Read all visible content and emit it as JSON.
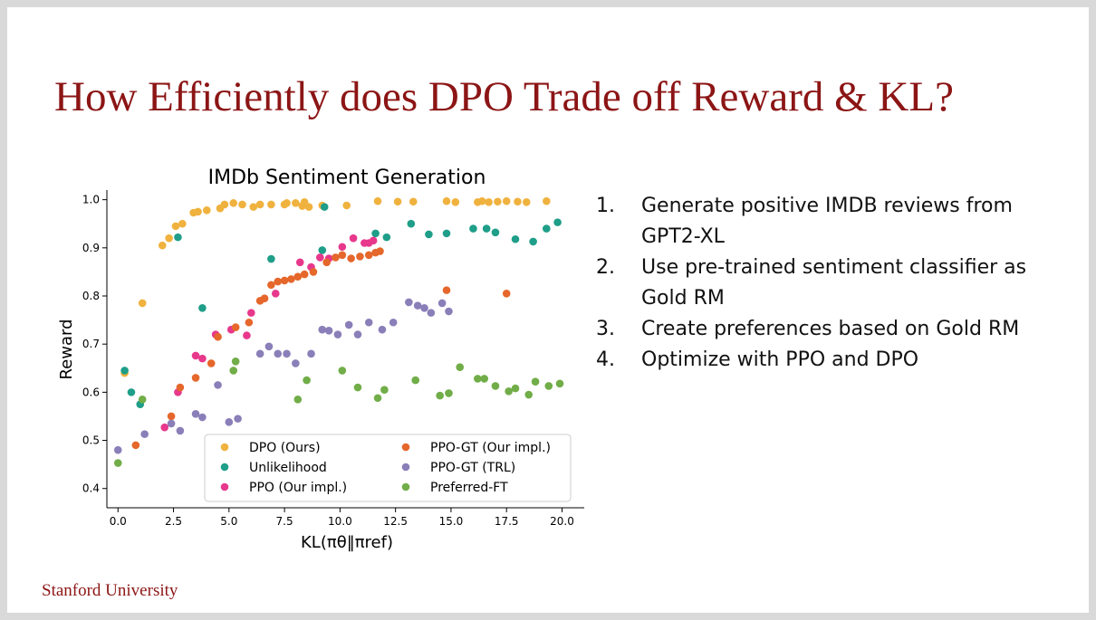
{
  "slide": {
    "title": "How Efficiently does DPO Trade off Reward & KL?",
    "footer": "Stanford University",
    "bullets": [
      {
        "num": "1.",
        "text": "Generate positive IMDB reviews from GPT2-XL"
      },
      {
        "num": "2.",
        "text": "Use pre-trained sentiment classifier as Gold RM"
      },
      {
        "num": "3.",
        "text": "Create preferences based on Gold RM"
      },
      {
        "num": "4.",
        "text": "Optimize with PPO and DPO"
      }
    ]
  },
  "chart_data": {
    "type": "scatter",
    "title": "IMDb Sentiment Generation",
    "xlabel": "KL(πθ‖πref)",
    "ylabel": "Reward",
    "xlim": [
      -0.5,
      21
    ],
    "ylim": [
      0.36,
      1.02
    ],
    "xticks": [
      0.0,
      2.5,
      5.0,
      7.5,
      10.0,
      12.5,
      15.0,
      17.5,
      20.0
    ],
    "xtick_labels": [
      "0.0",
      "2.5",
      "5.0",
      "7.5",
      "10.0",
      "12.5",
      "15.0",
      "17.5",
      "20.0"
    ],
    "yticks": [
      0.4,
      0.5,
      0.6,
      0.7,
      0.8,
      0.9,
      1.0
    ],
    "ytick_labels": [
      "0.4",
      "0.5",
      "0.6",
      "0.7",
      "0.8",
      "0.9",
      "1.0"
    ],
    "grid": false,
    "legend": "bottom-center, two columns",
    "series": [
      {
        "name": "DPO (Ours)",
        "color": "#f0b23e",
        "x": [
          0.3,
          1.1,
          2.0,
          2.3,
          2.6,
          2.9,
          3.4,
          3.6,
          4.0,
          4.6,
          4.8,
          5.2,
          5.6,
          6.1,
          6.4,
          6.9,
          7.5,
          7.6,
          8.0,
          8.3,
          8.4,
          8.6,
          9.2,
          10.3,
          11.7,
          12.6,
          13.3,
          14.8,
          15.2,
          16.2,
          16.4,
          16.7,
          17.1,
          17.5,
          18.0,
          18.4,
          19.3
        ],
        "y": [
          0.64,
          0.785,
          0.905,
          0.92,
          0.945,
          0.95,
          0.973,
          0.975,
          0.978,
          0.982,
          0.99,
          0.993,
          0.99,
          0.985,
          0.99,
          0.99,
          0.99,
          0.993,
          0.993,
          0.987,
          0.995,
          0.985,
          0.988,
          0.988,
          0.997,
          0.996,
          0.996,
          0.997,
          0.995,
          0.995,
          0.997,
          0.995,
          0.996,
          0.997,
          0.996,
          0.995,
          0.997
        ]
      },
      {
        "name": "Unlikelihood",
        "color": "#1f9e89",
        "x": [
          0.3,
          0.6,
          1.0,
          2.7,
          3.8,
          6.9,
          9.2,
          9.3,
          11.6,
          12.1,
          13.2,
          14.0,
          14.8,
          16.0,
          16.6,
          17.0,
          17.9,
          18.7,
          19.3,
          19.8
        ],
        "y": [
          0.645,
          0.6,
          0.575,
          0.922,
          0.775,
          0.877,
          0.895,
          0.985,
          0.93,
          0.922,
          0.95,
          0.928,
          0.93,
          0.94,
          0.94,
          0.932,
          0.918,
          0.913,
          0.94,
          0.953
        ]
      },
      {
        "name": "PPO (Our impl.)",
        "color": "#e7388c",
        "x": [
          2.1,
          2.7,
          3.5,
          3.8,
          4.4,
          5.1,
          5.8,
          6.0,
          7.1,
          8.2,
          8.7,
          9.1,
          9.5,
          10.1,
          10.6,
          11.1,
          11.3,
          11.5
        ],
        "y": [
          0.527,
          0.6,
          0.676,
          0.67,
          0.72,
          0.73,
          0.718,
          0.765,
          0.805,
          0.87,
          0.86,
          0.88,
          0.878,
          0.902,
          0.92,
          0.91,
          0.91,
          0.915
        ]
      },
      {
        "name": "PPO-GT (Our impl.)",
        "color": "#e5672b",
        "x": [
          0.8,
          2.4,
          2.8,
          3.5,
          4.2,
          4.5,
          5.3,
          5.9,
          6.4,
          6.6,
          6.9,
          7.2,
          7.5,
          7.8,
          8.1,
          8.4,
          8.8,
          9.4,
          9.8,
          10.1,
          10.5,
          10.9,
          11.3,
          11.6,
          11.8,
          14.8,
          17.5
        ],
        "y": [
          0.49,
          0.55,
          0.61,
          0.63,
          0.66,
          0.715,
          0.735,
          0.745,
          0.79,
          0.795,
          0.823,
          0.83,
          0.832,
          0.835,
          0.84,
          0.845,
          0.85,
          0.87,
          0.88,
          0.885,
          0.878,
          0.882,
          0.885,
          0.89,
          0.893,
          0.812,
          0.805
        ]
      },
      {
        "name": "PPO-GT (TRL)",
        "color": "#8a7fb8",
        "x": [
          0,
          1.2,
          2.4,
          2.8,
          3.5,
          3.8,
          4.5,
          5.0,
          5.4,
          6.4,
          6.8,
          7.2,
          7.6,
          8.0,
          8.7,
          9.2,
          9.5,
          9.9,
          10.4,
          10.8,
          11.3,
          11.9,
          12.4,
          13.1,
          13.5,
          13.8,
          14.1,
          14.6,
          14.9
        ],
        "y": [
          0.48,
          0.513,
          0.535,
          0.52,
          0.555,
          0.548,
          0.615,
          0.538,
          0.545,
          0.68,
          0.695,
          0.68,
          0.68,
          0.66,
          0.68,
          0.73,
          0.728,
          0.72,
          0.74,
          0.72,
          0.745,
          0.73,
          0.745,
          0.787,
          0.78,
          0.775,
          0.765,
          0.785,
          0.768
        ]
      },
      {
        "name": "Preferred-FT",
        "color": "#71ad48",
        "x": [
          0,
          1.1,
          5.3,
          5.2,
          8.1,
          8.5,
          10.1,
          10.8,
          12.0,
          11.7,
          13.4,
          14.5,
          14.9,
          15.4,
          16.2,
          16.5,
          17.0,
          17.6,
          17.9,
          18.5,
          18.8,
          19.4,
          19.9
        ],
        "y": [
          0.453,
          0.585,
          0.664,
          0.645,
          0.585,
          0.625,
          0.645,
          0.61,
          0.605,
          0.588,
          0.625,
          0.593,
          0.598,
          0.652,
          0.628,
          0.628,
          0.613,
          0.602,
          0.608,
          0.595,
          0.622,
          0.613,
          0.618
        ]
      }
    ]
  }
}
